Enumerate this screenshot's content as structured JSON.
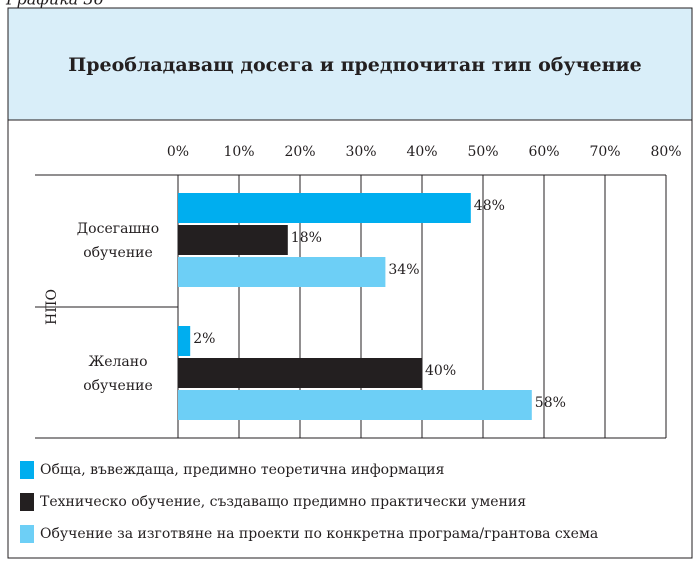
{
  "chart_data": {
    "type": "bar",
    "orientation": "horizontal",
    "caption": "Графика 36",
    "title": "Преобладаващ досега и предпочитан тип обучение",
    "group_label": "НПО",
    "categories": [
      "Досегашно обучение",
      "Желано обучение"
    ],
    "series": [
      {
        "name": "Обща, въвеждаща, предимно теоретична информация",
        "color": "#00aeef",
        "values": [
          48,
          2
        ],
        "value_labels": [
          "48%",
          "2%"
        ]
      },
      {
        "name": "Техническо обучение, създаващо предимно практически умения",
        "color": "#231f20",
        "values": [
          18,
          40
        ],
        "value_labels": [
          "18%",
          "40%"
        ]
      },
      {
        "name": "Обучение за изготвяне на проекти по конкретна програма/грантова схема",
        "color": "#6dcff6",
        "values": [
          34,
          58
        ],
        "value_labels": [
          "34%",
          "58%"
        ]
      }
    ],
    "xlim": [
      0,
      80
    ],
    "xticks": [
      {
        "value": 0,
        "label": "0%"
      },
      {
        "value": 10,
        "label": "10%"
      },
      {
        "value": 20,
        "label": "20%"
      },
      {
        "value": 30,
        "label": "30%"
      },
      {
        "value": 40,
        "label": "40%"
      },
      {
        "value": 50,
        "label": "50%"
      },
      {
        "value": 60,
        "label": "60%"
      },
      {
        "value": 70,
        "label": "70%"
      },
      {
        "value": 80,
        "label": "80%"
      }
    ],
    "grid": true,
    "legend": "bottom"
  }
}
